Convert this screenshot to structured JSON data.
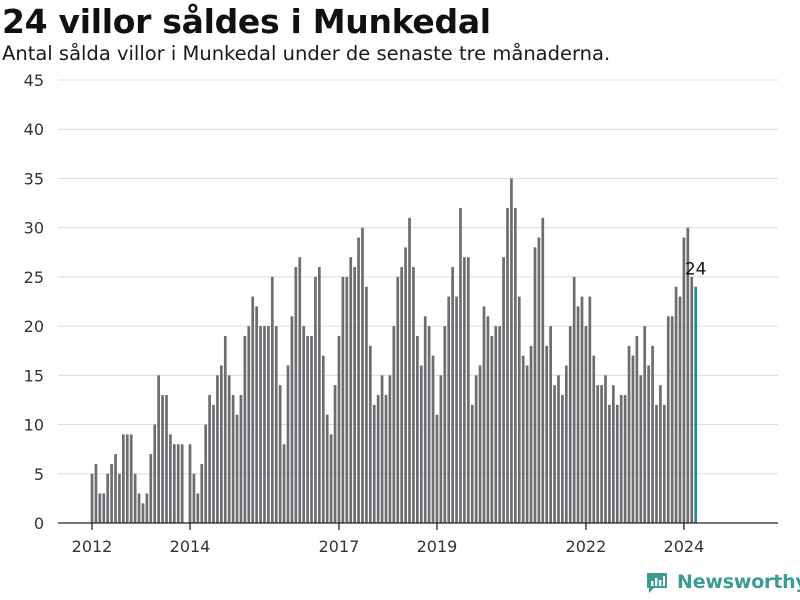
{
  "header": {
    "title": "24 villor såldes i Munkedal",
    "subtitle": "Antal sålda villor i Munkedal under de senaste tre månaderna."
  },
  "brand": {
    "name": "Newsworthy",
    "color": "#3a9c92"
  },
  "colors": {
    "bar": "#6d6c70",
    "highlight": "#1a9187",
    "grid": "#dcdcdc",
    "axis": "#222222"
  },
  "chart_data": {
    "type": "bar",
    "title": "24 villor såldes i Munkedal",
    "subtitle": "Antal sålda villor i Munkedal under de senaste tre månaderna.",
    "xlabel": "",
    "ylabel": "",
    "ylim": [
      0,
      45
    ],
    "yticks": [
      0,
      5,
      10,
      15,
      20,
      25,
      30,
      35,
      40,
      45
    ],
    "grid": true,
    "x_tick_labels": [
      "2012",
      "2014",
      "2017",
      "2019",
      "2022",
      "2024"
    ],
    "x_tick_index": [
      0,
      25,
      63,
      88,
      126,
      151
    ],
    "highlight_label": "24",
    "values": [
      5,
      6,
      3,
      3,
      5,
      6,
      7,
      5,
      9,
      9,
      9,
      5,
      3,
      2,
      3,
      7,
      10,
      15,
      13,
      13,
      9,
      8,
      8,
      8,
      0,
      8,
      5,
      3,
      6,
      10,
      13,
      12,
      15,
      16,
      19,
      15,
      13,
      11,
      13,
      19,
      20,
      23,
      22,
      20,
      20,
      20,
      25,
      20,
      14,
      8,
      16,
      21,
      26,
      27,
      20,
      19,
      19,
      25,
      26,
      17,
      11,
      9,
      14,
      19,
      25,
      25,
      27,
      26,
      29,
      30,
      24,
      18,
      12,
      13,
      15,
      13,
      15,
      20,
      25,
      26,
      28,
      31,
      26,
      19,
      16,
      21,
      20,
      17,
      11,
      15,
      20,
      23,
      26,
      23,
      32,
      27,
      27,
      12,
      15,
      16,
      22,
      21,
      19,
      20,
      20,
      27,
      32,
      35,
      32,
      23,
      17,
      16,
      18,
      28,
      29,
      31,
      18,
      20,
      14,
      15,
      13,
      16,
      20,
      25,
      22,
      23,
      20,
      23,
      17,
      14,
      14,
      15,
      12,
      14,
      12,
      13,
      13,
      18,
      17,
      19,
      15,
      20,
      16,
      18,
      12,
      14,
      12,
      21,
      21,
      24,
      23,
      29,
      30,
      25,
      24
    ]
  }
}
